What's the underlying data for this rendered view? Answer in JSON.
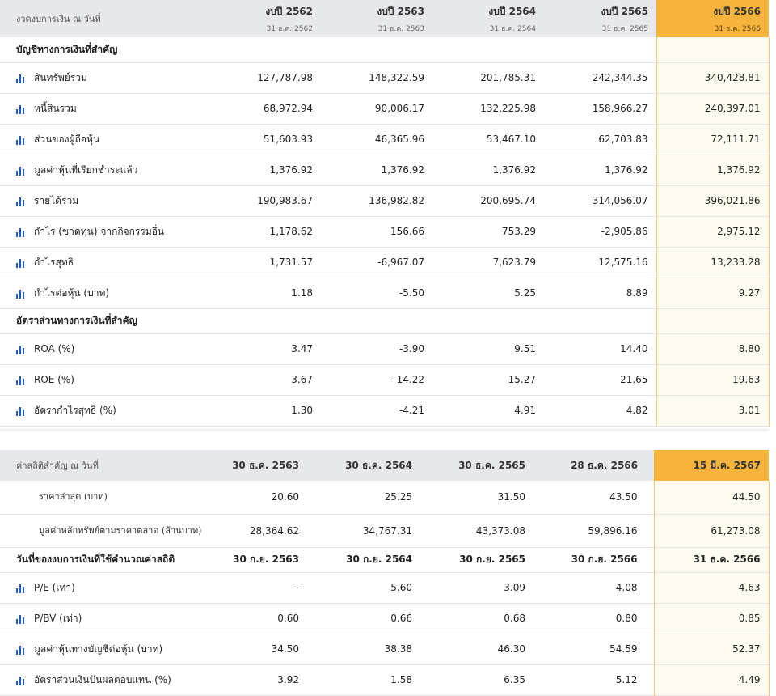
{
  "table1": {
    "header_label": "งวดงบการเงิน ณ วันที่",
    "periods": [
      {
        "title": "งบปี 2562",
        "date": "31 ธ.ค. 2562"
      },
      {
        "title": "งบปี 2563",
        "date": "31 ธ.ค. 2563"
      },
      {
        "title": "งบปี 2564",
        "date": "31 ธ.ค. 2564"
      },
      {
        "title": "งบปี 2565",
        "date": "31 ธ.ค. 2565"
      },
      {
        "title": "งบปี 2566",
        "date": "31 ธ.ค. 2566"
      }
    ],
    "section1_title": "บัญชีทางการเงินที่สำคัญ",
    "rows1": [
      {
        "label": "สินทรัพย์รวม",
        "values": [
          "127,787.98",
          "148,322.59",
          "201,785.31",
          "242,344.35",
          "340,428.81"
        ]
      },
      {
        "label": "หนี้สินรวม",
        "values": [
          "68,972.94",
          "90,006.17",
          "132,225.98",
          "158,966.27",
          "240,397.01"
        ]
      },
      {
        "label": "ส่วนของผู้ถือหุ้น",
        "values": [
          "51,603.93",
          "46,365.96",
          "53,467.10",
          "62,703.83",
          "72,111.71"
        ]
      },
      {
        "label": "มูลค่าหุ้นที่เรียกชำระแล้ว",
        "values": [
          "1,376.92",
          "1,376.92",
          "1,376.92",
          "1,376.92",
          "1,376.92"
        ]
      },
      {
        "label": "รายได้รวม",
        "values": [
          "190,983.67",
          "136,982.82",
          "200,695.74",
          "314,056.07",
          "396,021.86"
        ]
      },
      {
        "label": "กำไร (ขาดทุน) จากกิจกรรมอื่น",
        "values": [
          "1,178.62",
          "156.66",
          "753.29",
          "-2,905.86",
          "2,975.12"
        ]
      },
      {
        "label": "กำไรสุทธิ",
        "values": [
          "1,731.57",
          "-6,967.07",
          "7,623.79",
          "12,575.16",
          "13,233.28"
        ]
      },
      {
        "label": "กำไรต่อหุ้น (บาท)",
        "values": [
          "1.18",
          "-5.50",
          "5.25",
          "8.89",
          "9.27"
        ]
      }
    ],
    "section2_title": "อัตราส่วนทางการเงินที่สำคัญ",
    "rows2": [
      {
        "label": "ROA (%)",
        "values": [
          "3.47",
          "-3.90",
          "9.51",
          "14.40",
          "8.80"
        ]
      },
      {
        "label": "ROE (%)",
        "values": [
          "3.67",
          "-14.22",
          "15.27",
          "21.65",
          "19.63"
        ]
      },
      {
        "label": "อัตรากำไรสุทธิ (%)",
        "values": [
          "1.30",
          "-4.21",
          "4.91",
          "4.82",
          "3.01"
        ]
      }
    ]
  },
  "table2": {
    "header_label": "ค่าสถิติสำคัญ ณ วันที่",
    "dates": [
      "30 ธ.ค. 2563",
      "30 ธ.ค. 2564",
      "30 ธ.ค. 2565",
      "28 ธ.ค. 2566",
      "15 มี.ค. 2567"
    ],
    "price_rows": [
      {
        "label": "ราคาล่าสุด (บาท)",
        "values": [
          "20.60",
          "25.25",
          "31.50",
          "43.50",
          "44.50"
        ]
      },
      {
        "label": "มูลค่าหลักทรัพย์ตามราคาตลาด (ล้านบาท)",
        "values": [
          "28,364.62",
          "34,767.31",
          "43,373.08",
          "59,896.16",
          "61,273.08"
        ]
      }
    ],
    "fs_date_row": {
      "label": "วันที่ของงบการเงินที่ใช้คำนวณค่าสถิติ",
      "values": [
        "30 ก.ย. 2563",
        "30 ก.ย. 2564",
        "30 ก.ย. 2565",
        "30 ก.ย. 2566",
        "31 ธ.ค. 2566"
      ]
    },
    "ratio_rows": [
      {
        "label": "P/E (เท่า)",
        "values": [
          "-",
          "5.60",
          "3.09",
          "4.08",
          "4.63"
        ]
      },
      {
        "label": "P/BV (เท่า)",
        "values": [
          "0.60",
          "0.66",
          "0.68",
          "0.80",
          "0.85"
        ]
      },
      {
        "label": "มูลค่าหุ้นทางบัญชีต่อหุ้น (บาท)",
        "values": [
          "34.50",
          "38.38",
          "46.30",
          "54.59",
          "52.37"
        ]
      },
      {
        "label": "อัตราส่วนเงินปันผลตอบแทน (%)",
        "values": [
          "3.92",
          "1.58",
          "6.35",
          "5.12",
          "4.49"
        ]
      }
    ]
  },
  "colors": {
    "highlight": "#f6b43c",
    "header_bg": "#e6e8ec",
    "icon": "#1f5bc7"
  },
  "icon_name": "bar-chart-icon"
}
